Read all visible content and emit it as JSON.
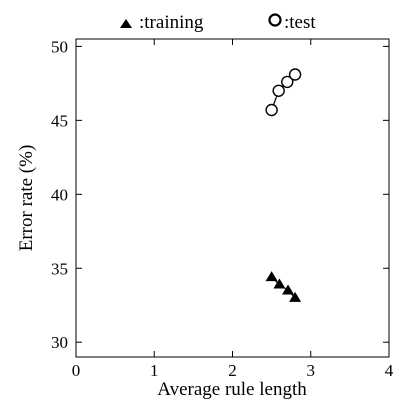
{
  "chart_data": {
    "type": "scatter",
    "xlabel": "Average rule length",
    "ylabel": "Error rate (%)",
    "xlim": [
      0,
      4
    ],
    "ylim": [
      29,
      50.5
    ],
    "xticks": [
      0,
      1,
      2,
      3,
      4
    ],
    "yticks": [
      30,
      35,
      40,
      45,
      50
    ],
    "xtick_labels": [
      "0",
      "1",
      "2",
      "3",
      "4"
    ],
    "ytick_labels": [
      "30",
      "35",
      "40",
      "45",
      "50"
    ],
    "grid": false,
    "legend_position": "top",
    "series": [
      {
        "name": ":training",
        "marker": "filled-triangle",
        "connected": true,
        "color": "#000000",
        "points": [
          {
            "x": 2.5,
            "y": 34.4
          },
          {
            "x": 2.6,
            "y": 33.9
          },
          {
            "x": 2.71,
            "y": 33.5
          },
          {
            "x": 2.8,
            "y": 33.0
          }
        ]
      },
      {
        "name": ":test",
        "marker": "open-circle",
        "connected": true,
        "color": "#000000",
        "points": [
          {
            "x": 2.5,
            "y": 45.7
          },
          {
            "x": 2.59,
            "y": 47.0
          },
          {
            "x": 2.7,
            "y": 47.6
          },
          {
            "x": 2.8,
            "y": 48.1
          }
        ]
      }
    ]
  }
}
